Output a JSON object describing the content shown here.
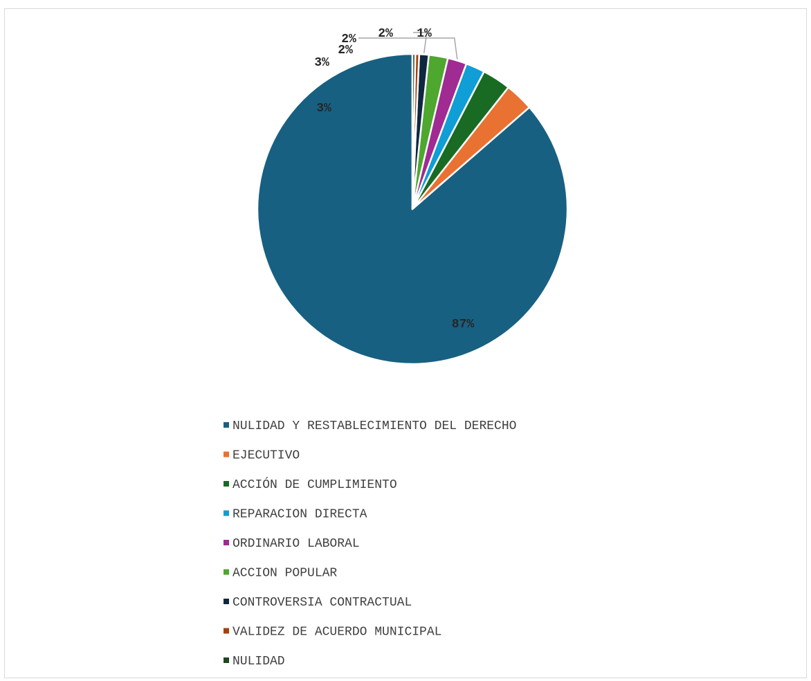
{
  "chart_data": {
    "type": "pie",
    "title": "",
    "categories": [
      "NULIDAD Y RESTABLECIMIENTO DEL DERECHO",
      "EJECUTIVO",
      "ACCIÓN DE CUMPLIMIENTO",
      "REPARACION DIRECTA",
      "ORDINARIO LABORAL",
      "ACCION POPULAR",
      "CONTROVERSIA CONTRACTUAL",
      "VALIDEZ DE ACUERDO MUNICIPAL",
      "NULIDAD"
    ],
    "values": [
      87,
      3,
      3,
      2,
      2,
      2,
      1,
      0.4,
      0.3
    ],
    "data_labels": [
      "87%",
      "3%",
      "3%",
      "2%",
      "2%",
      "2%",
      "1%",
      "",
      ""
    ],
    "colors": [
      "#186082",
      "#e97132",
      "#196b24",
      "#0f9ed5",
      "#a02b93",
      "#4ea72e",
      "#0e2841",
      "#a5410d",
      "#1e4620"
    ],
    "legend_position": "bottom",
    "start_angle_deg": 0,
    "direction": "counterclockwise"
  }
}
